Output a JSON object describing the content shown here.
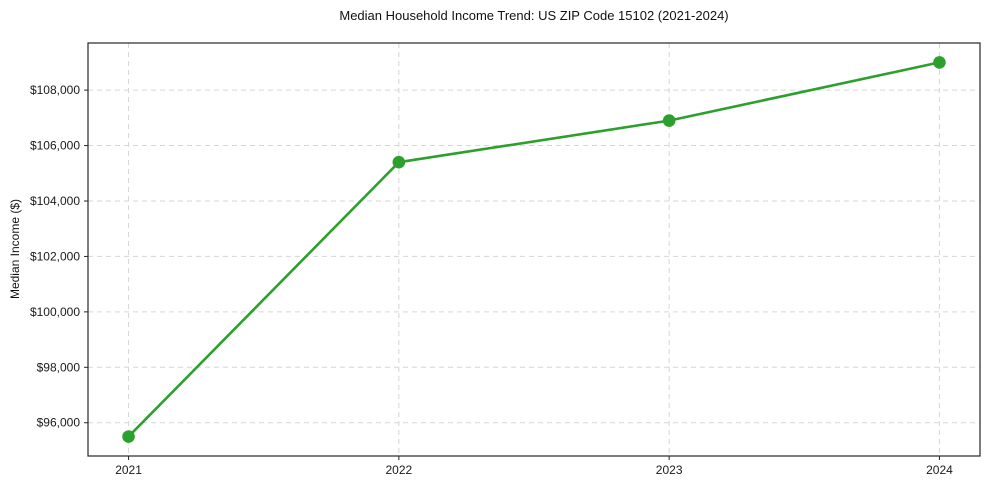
{
  "chart_data": {
    "type": "line",
    "title": "Median Household Income Trend: US ZIP Code 15102 (2021-2024)",
    "xlabel": "",
    "ylabel": "Median Income ($)",
    "x": [
      2021,
      2022,
      2023,
      2024
    ],
    "xtick_labels": [
      "2021",
      "2022",
      "2023",
      "2024"
    ],
    "series": [
      {
        "name": "Median Household Income",
        "values": [
          95500,
          105400,
          106900,
          109000
        ],
        "color": "#2ca02c"
      }
    ],
    "ytick_values": [
      96000,
      98000,
      100000,
      102000,
      104000,
      106000,
      108000
    ],
    "ytick_labels": [
      "$96,000",
      "$98,000",
      "$100,000",
      "$102,000",
      "$104,000",
      "$106,000",
      "$108,000"
    ],
    "xlim": [
      2020.85,
      2024.15
    ],
    "ylim": [
      94800,
      109700
    ],
    "grid": true,
    "legend_position": "none",
    "marker": "circle",
    "marker_radius": 6.3
  }
}
